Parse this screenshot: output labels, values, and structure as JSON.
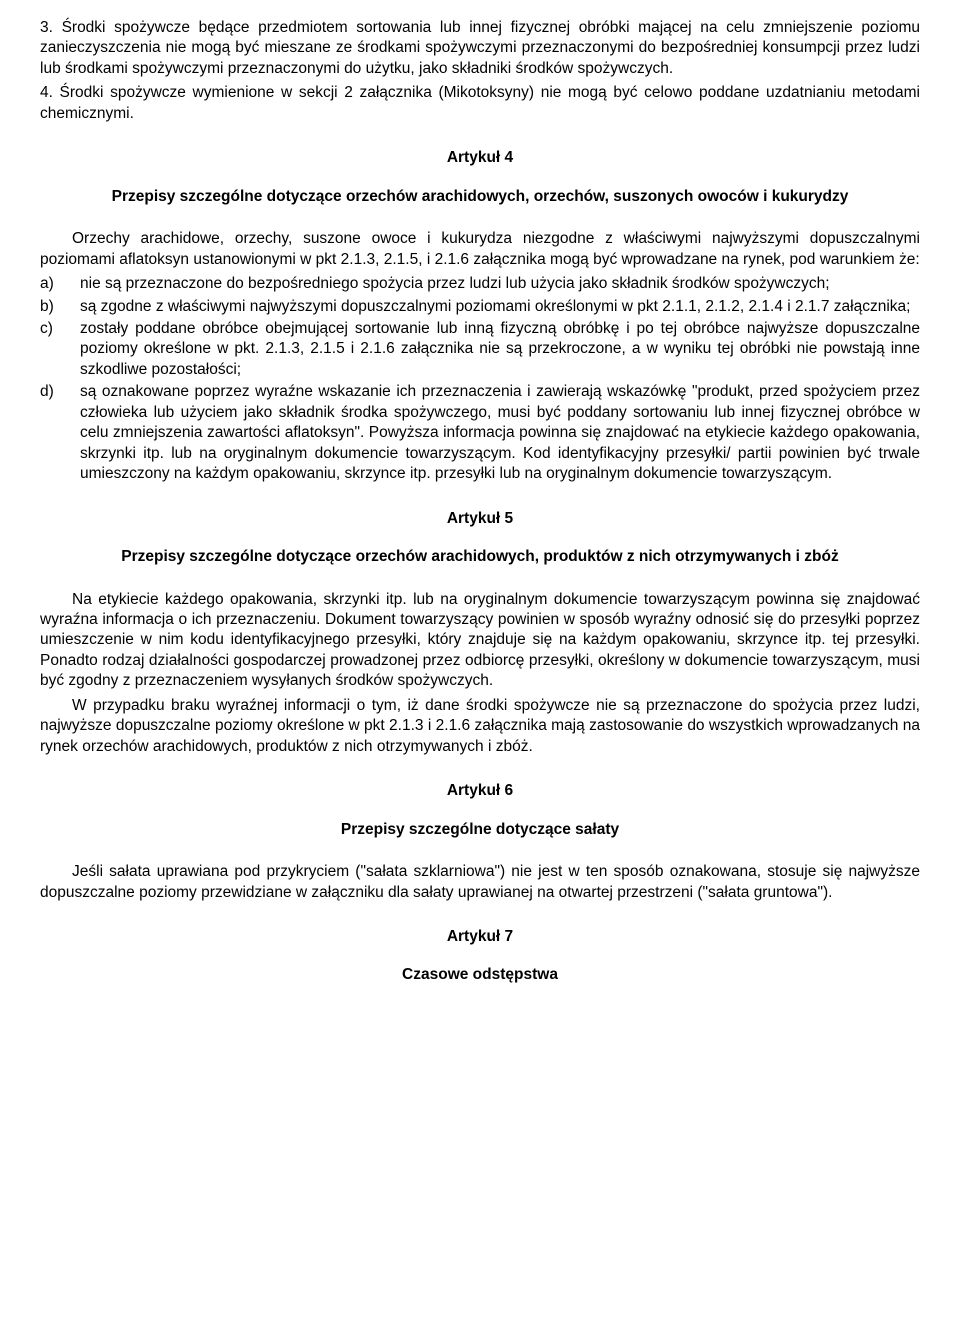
{
  "top": {
    "p3": "3. Środki spożywcze będące przedmiotem sortowania lub innej fizycznej obróbki mającej na celu zmniejszenie poziomu zanieczyszczenia nie mogą być mieszane ze środkami spożywczymi przeznaczonymi do bezpośredniej konsumpcji przez ludzi lub środkami spożywczymi przeznaczonymi do użytku, jako składniki środków spożywczych.",
    "p4": "4. Środki spożywcze wymienione w sekcji 2 załącznika (Mikotoksyny) nie mogą być celowo poddane uzdatnianiu metodami chemicznymi."
  },
  "art4": {
    "title": "Artykuł 4",
    "subtitle": "Przepisy szczególne dotyczące orzechów arachidowych, orzechów, suszonych owoców i kukurydzy",
    "intro": "Orzechy arachidowe, orzechy, suszone owoce i kukurydza niezgodne z właściwymi najwyższymi dopuszczalnymi poziomami aflatoksyn ustanowionymi w pkt 2.1.3, 2.1.5, i 2.1.6 załącznika mogą być wprowadzane na rynek, pod warunkiem że:",
    "items": [
      {
        "m": "a)",
        "t": "nie są przeznaczone do bezpośredniego spożycia przez ludzi lub użycia jako składnik środków spożywczych;"
      },
      {
        "m": "b)",
        "t": "są zgodne z właściwymi najwyższymi dopuszczalnymi poziomami określonymi w pkt 2.1.1, 2.1.2, 2.1.4 i 2.1.7 załącznika;"
      },
      {
        "m": "c)",
        "t": "zostały poddane obróbce obejmującej sortowanie lub inną fizyczną obróbkę i po tej obróbce najwyższe dopuszczalne poziomy określone w pkt. 2.1.3, 2.1.5 i 2.1.6 załącznika nie są przekroczone, a w wyniku tej obróbki nie powstają inne szkodliwe pozostałości;"
      },
      {
        "m": "d)",
        "t": "są oznakowane poprzez wyraźne wskazanie ich przeznaczenia i zawierają wskazówkę \"produkt, przed spożyciem przez człowieka lub użyciem jako składnik środka spożywczego, musi być poddany sortowaniu lub innej fizycznej obróbce w celu zmniejszenia zawartości aflatoksyn\". Powyższa informacja powinna się znajdować na etykiecie każdego opakowania, skrzynki itp. lub na oryginalnym dokumencie towarzyszącym. Kod identyfikacyjny przesyłki/ partii powinien być trwale umieszczony na każdym opakowaniu, skrzynce itp. przesyłki lub na oryginalnym dokumencie towarzyszącym."
      }
    ]
  },
  "art5": {
    "title": "Artykuł 5",
    "subtitle": "Przepisy szczególne dotyczące orzechów arachidowych, produktów z nich otrzymywanych i zbóż",
    "p1": "Na etykiecie każdego opakowania, skrzynki itp. lub na oryginalnym dokumencie towarzyszącym powinna się znajdować wyraźna informacja o ich przeznaczeniu. Dokument towarzyszący powinien w sposób wyraźny odnosić się do przesyłki poprzez umieszczenie w nim kodu identyfikacyjnego przesyłki, który znajduje się na każdym opakowaniu, skrzynce itp. tej przesyłki. Ponadto rodzaj działalności gospodarczej prowadzonej przez odbiorcę przesyłki, określony w dokumencie towarzyszącym, musi być zgodny z przeznaczeniem wysyłanych środków spożywczych.",
    "p2": "W przypadku braku wyraźnej informacji o tym, iż dane środki spożywcze nie są przeznaczone do spożycia przez ludzi, najwyższe dopuszczalne poziomy określone w pkt 2.1.3 i 2.1.6 załącznika mają zastosowanie do wszystkich wprowadzanych na rynek orzechów arachidowych, produktów z nich otrzymywanych i zbóż."
  },
  "art6": {
    "title": "Artykuł 6",
    "subtitle": "Przepisy szczególne dotyczące sałaty",
    "p1": "Jeśli sałata uprawiana pod przykryciem (\"sałata szklarniowa\") nie jest w ten sposób oznakowana, stosuje się najwyższe dopuszczalne poziomy przewidziane w załączniku dla sałaty uprawianej na otwartej przestrzeni (\"sałata gruntowa\")."
  },
  "art7": {
    "title": "Artykuł 7",
    "subtitle": "Czasowe odstępstwa"
  }
}
